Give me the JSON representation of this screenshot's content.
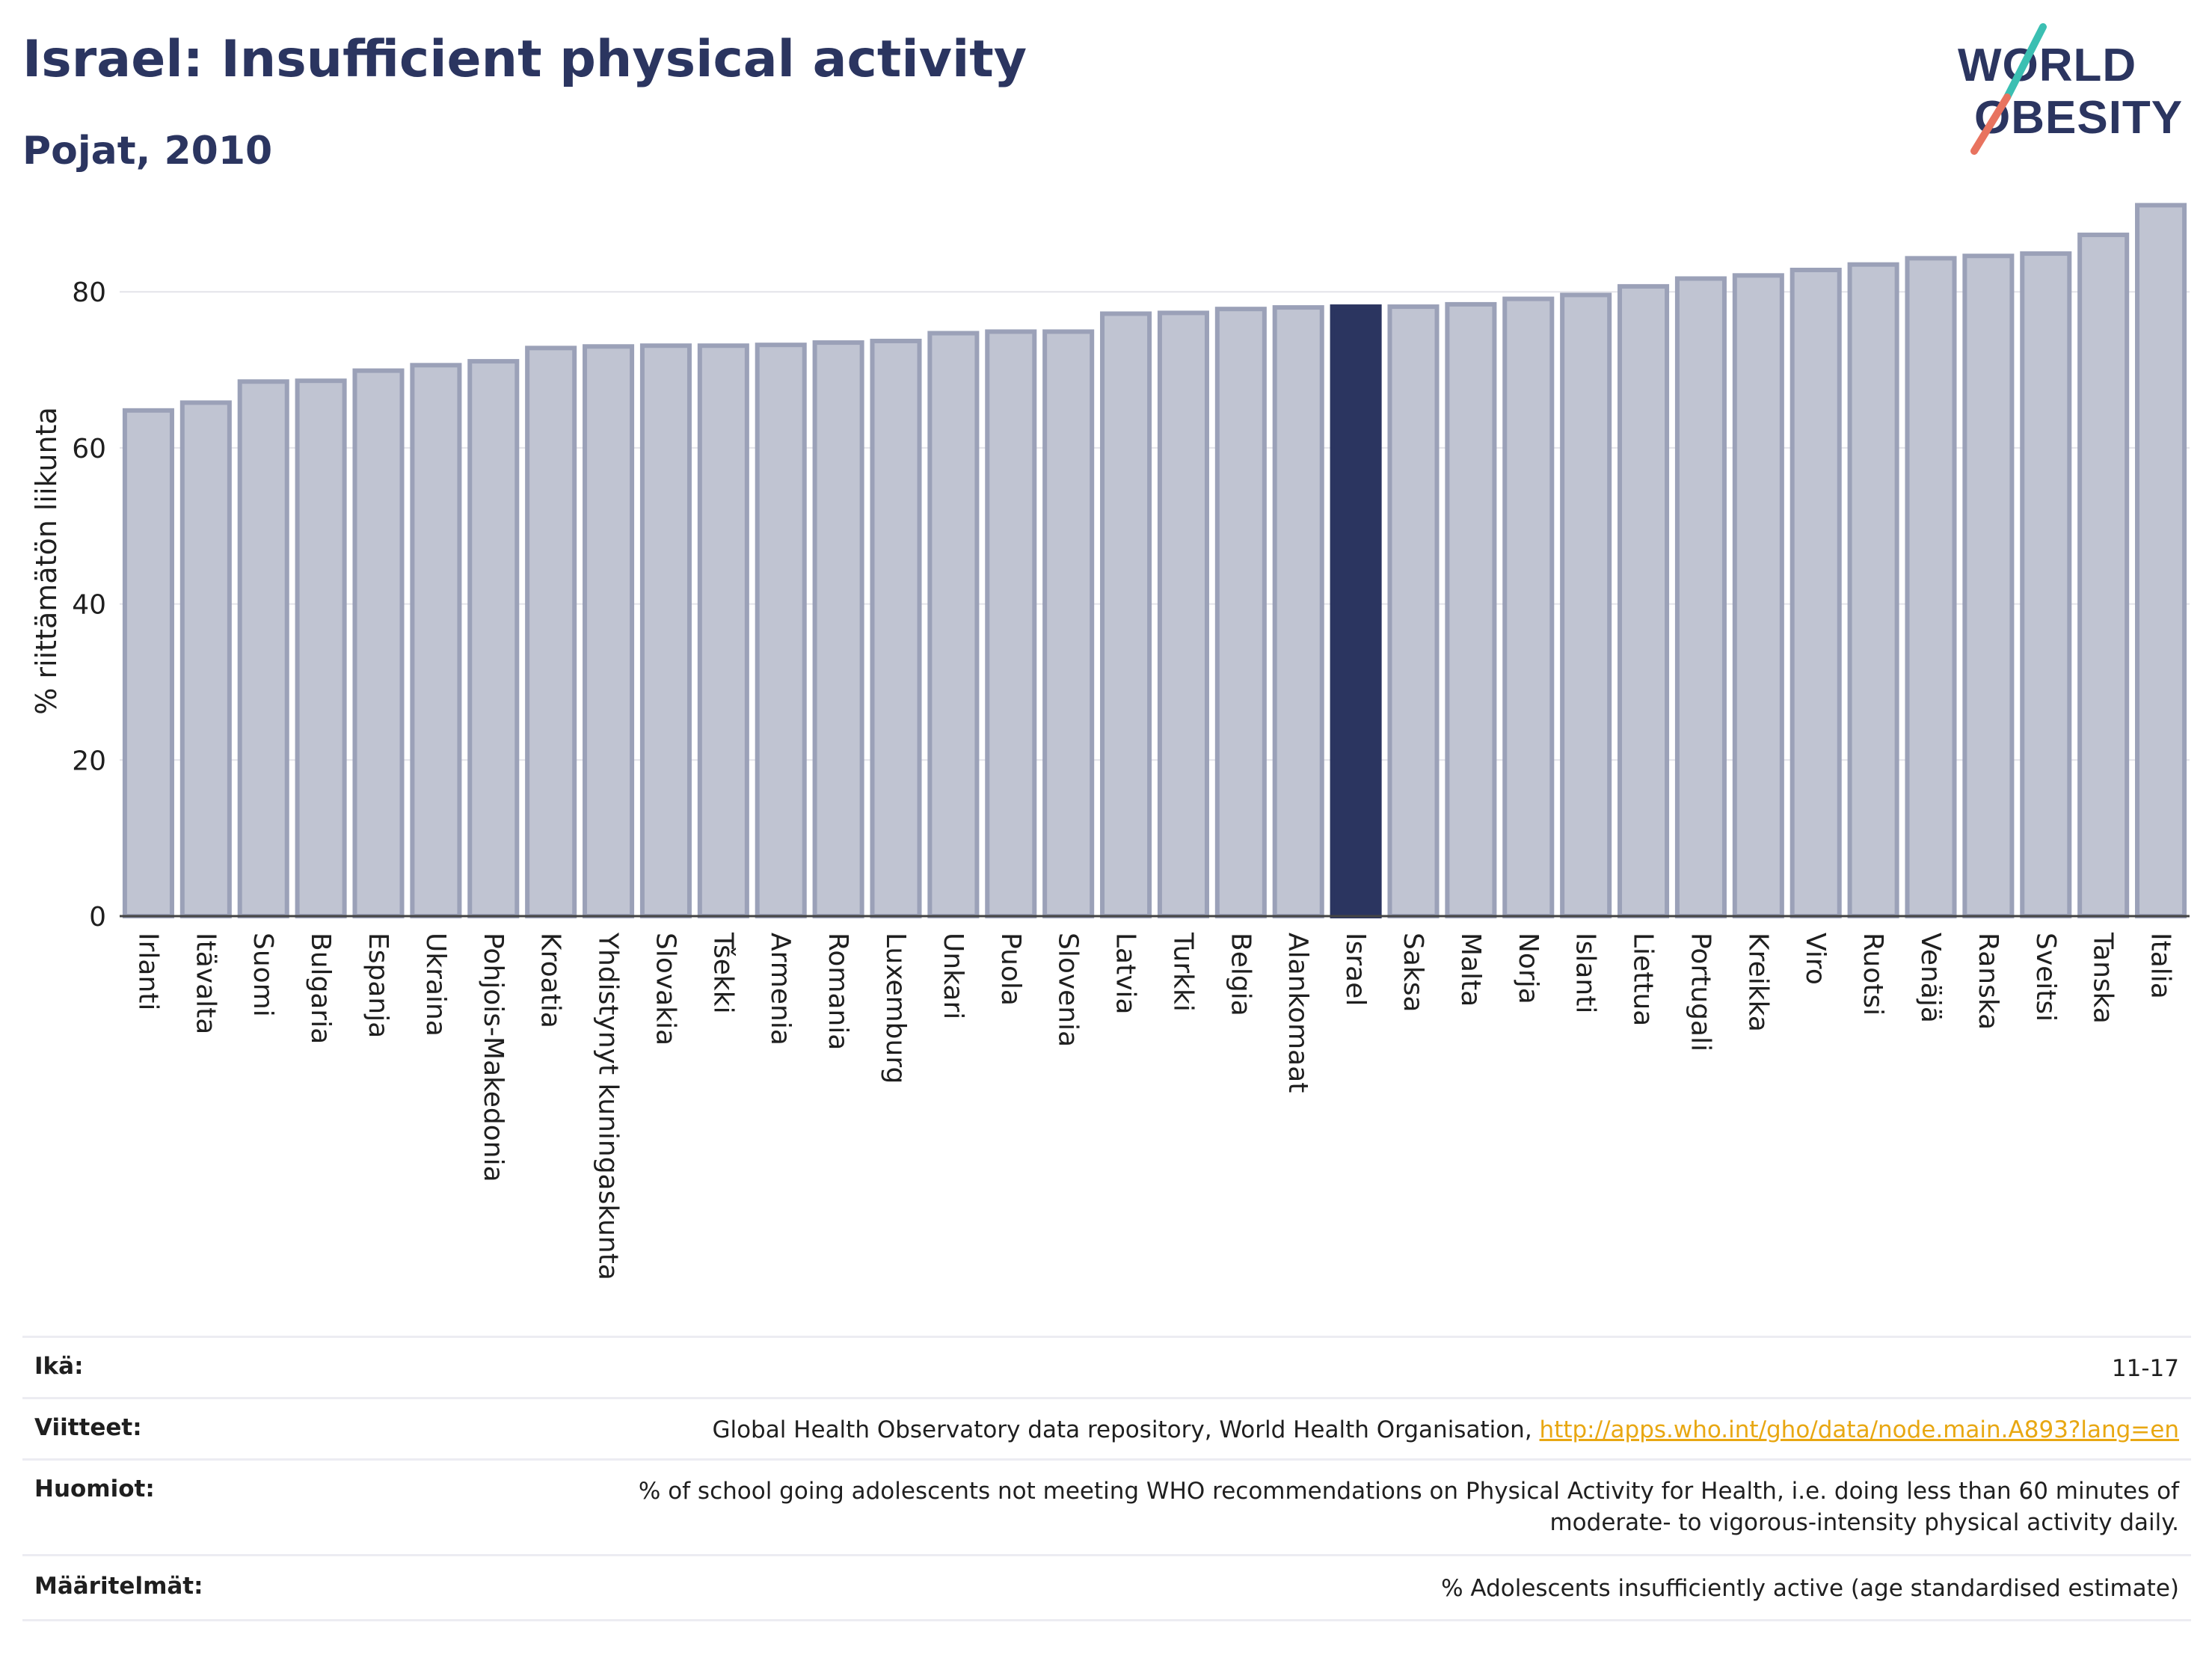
{
  "header": {
    "title": "Israel: Insufficient physical activity",
    "subtitle": "Pojat, 2010"
  },
  "logo": {
    "line1": "WORLD",
    "line2": "OBESITY",
    "colors": {
      "text": "#2b3560",
      "slash_top": "#3bbfb2",
      "slash_bottom": "#e8735f"
    }
  },
  "chart_data": {
    "type": "bar",
    "ylabel": "% riittämätön liikunta",
    "xlabel": "",
    "ylim": [
      0,
      92
    ],
    "yticks": [
      0,
      20,
      40,
      60,
      80
    ],
    "grid": true,
    "highlight_category": "Israel",
    "colors": {
      "bar": "#c0c4d2",
      "bar_stroke": "#9ba1b8",
      "highlight": "#2b3560"
    },
    "categories": [
      "Irlanti",
      "Itävalta",
      "Suomi",
      "Bulgaria",
      "Espanja",
      "Ukraina",
      "Pohjois-Makedonia",
      "Kroatia",
      "Yhdistynyt kuningaskunta",
      "Slovakia",
      "Tšekki",
      "Armenia",
      "Romania",
      "Luxemburg",
      "Unkari",
      "Puola",
      "Slovenia",
      "Latvia",
      "Turkki",
      "Belgia",
      "Alankomaat",
      "Israel",
      "Saksa",
      "Malta",
      "Norja",
      "Islanti",
      "Liettua",
      "Portugali",
      "Kreikka",
      "Viro",
      "Ruotsi",
      "Venäjä",
      "Ranska",
      "Sveitsi",
      "Tanska",
      "Italia"
    ],
    "values": [
      64.8,
      65.8,
      68.5,
      68.6,
      69.9,
      70.6,
      71.1,
      72.8,
      73.0,
      73.1,
      73.1,
      73.2,
      73.5,
      73.7,
      74.7,
      74.9,
      74.9,
      77.2,
      77.3,
      77.8,
      78.0,
      78.1,
      78.1,
      78.4,
      79.1,
      79.6,
      80.7,
      81.7,
      82.1,
      82.8,
      83.5,
      84.3,
      84.6,
      84.9,
      87.3,
      91.1
    ]
  },
  "meta": {
    "age": {
      "label": "Ikä:",
      "value": "11-17"
    },
    "references": {
      "label": "Viitteet:",
      "text": "Global Health Observatory data repository, World Health Organisation, ",
      "link": "http://apps.who.int/gho/data/node.main.A893?lang=en"
    },
    "notes": {
      "label": "Huomiot:",
      "line1": "% of school going adolescents not meeting WHO recommendations on Physical Activity for Health, i.e. doing less than 60 minutes of",
      "line2": "moderate- to vigorous-intensity physical activity daily."
    },
    "definitions": {
      "label": "Määritelmät:",
      "value": "% Adolescents insufficiently active (age standardised estimate)"
    }
  }
}
